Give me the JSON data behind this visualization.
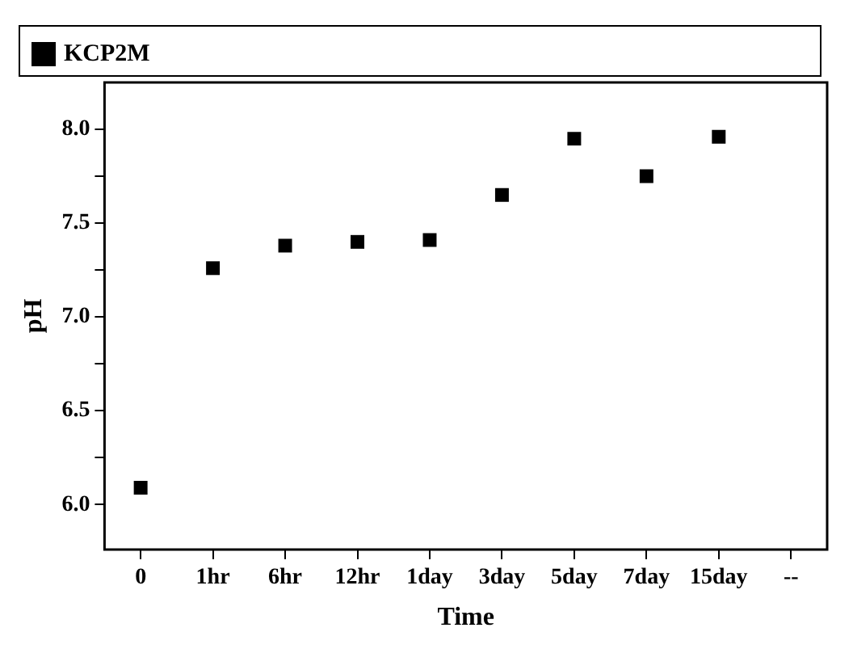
{
  "chart_data": {
    "type": "scatter",
    "xlabel": "Time",
    "ylabel": "pH",
    "categories": [
      "0",
      "1hr",
      "6hr",
      "12hr",
      "1day",
      "3day",
      "5day",
      "7day",
      "15day",
      "--"
    ],
    "series": [
      {
        "name": "KCP2M",
        "color": "#000000",
        "values": [
          6.09,
          7.26,
          7.38,
          7.4,
          7.41,
          7.65,
          7.95,
          7.75,
          7.96,
          null
        ]
      }
    ],
    "ylim": [
      5.76,
      8.25
    ],
    "yticks": [
      {
        "value": 6.0,
        "label": "6.0"
      },
      {
        "value": 6.25,
        "label": null
      },
      {
        "value": 6.5,
        "label": "6.5"
      },
      {
        "value": 6.75,
        "label": null
      },
      {
        "value": 7.0,
        "label": "7.0"
      },
      {
        "value": 7.25,
        "label": null
      },
      {
        "value": 7.5,
        "label": "7.5"
      },
      {
        "value": 7.75,
        "label": null
      },
      {
        "value": 8.0,
        "label": "8.0"
      }
    ],
    "marker": "square",
    "legend": "top left",
    "grid": false
  }
}
